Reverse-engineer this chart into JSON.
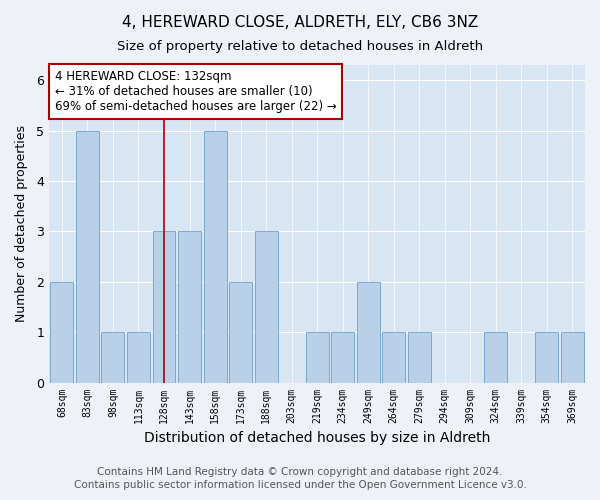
{
  "title1": "4, HEREWARD CLOSE, ALDRETH, ELY, CB6 3NZ",
  "title2": "Size of property relative to detached houses in Aldreth",
  "xlabel": "Distribution of detached houses by size in Aldreth",
  "ylabel": "Number of detached properties",
  "categories": [
    "68sqm",
    "83sqm",
    "98sqm",
    "113sqm",
    "128sqm",
    "143sqm",
    "158sqm",
    "173sqm",
    "188sqm",
    "203sqm",
    "219sqm",
    "234sqm",
    "249sqm",
    "264sqm",
    "279sqm",
    "294sqm",
    "309sqm",
    "324sqm",
    "339sqm",
    "354sqm",
    "369sqm"
  ],
  "values": [
    2,
    5,
    1,
    1,
    3,
    3,
    5,
    2,
    3,
    0,
    1,
    1,
    2,
    1,
    1,
    0,
    0,
    1,
    0,
    1,
    1
  ],
  "bar_color": "#b8d0e8",
  "bar_edge_color": "#6fa0cc",
  "property_line_index": 4,
  "property_line_color": "#aa0000",
  "annotation_text": "4 HEREWARD CLOSE: 132sqm\n← 31% of detached houses are smaller (10)\n69% of semi-detached houses are larger (22) →",
  "annotation_box_color": "#ffffff",
  "annotation_box_edge": "#aa0000",
  "ylim": [
    0,
    6.3
  ],
  "yticks": [
    0,
    1,
    2,
    3,
    4,
    5,
    6
  ],
  "footer": "Contains HM Land Registry data © Crown copyright and database right 2024.\nContains public sector information licensed under the Open Government Licence v3.0.",
  "bg_color": "#eef2f8",
  "plot_bg_color": "#d8e6f3",
  "title1_fontsize": 11,
  "title2_fontsize": 9.5,
  "xlabel_fontsize": 10,
  "ylabel_fontsize": 9,
  "footer_fontsize": 7.5,
  "annotation_fontsize": 8.5
}
